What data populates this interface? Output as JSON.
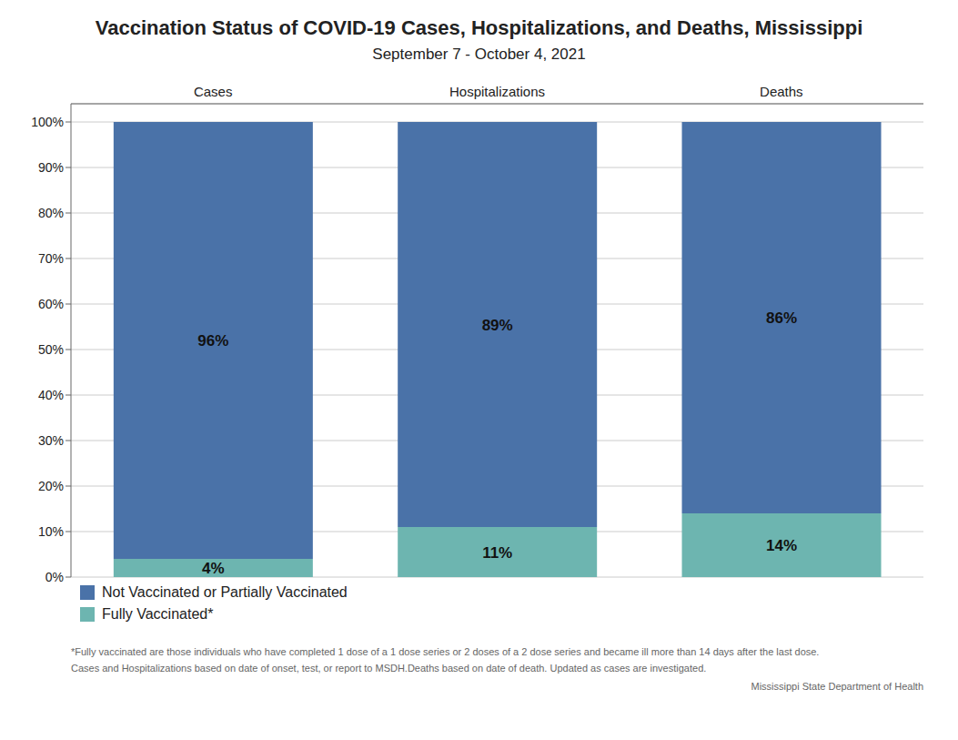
{
  "chart_data": {
    "type": "bar",
    "title": "Vaccination Status of COVID-19 Cases, Hospitalizations, and Deaths, Mississippi",
    "subtitle": "September 7 - October 4, 2021",
    "categories": [
      "Cases",
      "Hospitalizations",
      "Deaths"
    ],
    "series": [
      {
        "name": "Fully Vaccinated*",
        "color": "#6db5b0",
        "values": [
          4,
          11,
          14
        ],
        "value_labels": [
          "4%",
          "11%",
          "14%"
        ]
      },
      {
        "name": "Not Vaccinated or Partially Vaccinated",
        "color": "#4a72a8",
        "values": [
          96,
          89,
          86
        ],
        "value_labels": [
          "96%",
          "89%",
          "86%"
        ]
      }
    ],
    "stacked": true,
    "data_labels": true,
    "grid": true,
    "legend": "bottom",
    "ylim": [
      0,
      104
    ],
    "yticks": [
      {
        "value": 0,
        "label": "0%"
      },
      {
        "value": 10,
        "label": "10%"
      },
      {
        "value": 20,
        "label": "20%"
      },
      {
        "value": 30,
        "label": "30%"
      },
      {
        "value": 40,
        "label": "40%"
      },
      {
        "value": 50,
        "label": "50%"
      },
      {
        "value": 60,
        "label": "60%"
      },
      {
        "value": 70,
        "label": "70%"
      },
      {
        "value": 80,
        "label": "80%"
      },
      {
        "value": 90,
        "label": "90%"
      },
      {
        "value": 100,
        "label": "100%"
      }
    ],
    "annotations": [
      "*Fully vaccinated are those individuals who have completed 1 dose of a 1 dose series or 2 doses of a 2 dose series and became ill more than 14 days after the last dose.",
      "Cases and Hospitalizations based on date of onset, test, or report to MSDH.Deaths based on date of death. Updated as cases are investigated.",
      "Mississippi State Department of Health"
    ]
  }
}
